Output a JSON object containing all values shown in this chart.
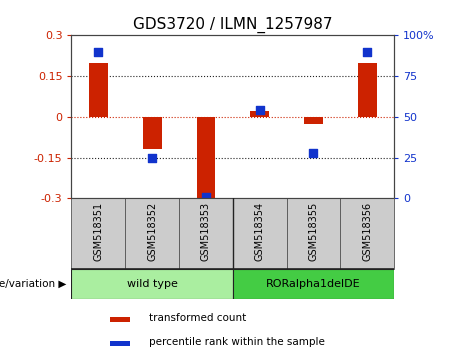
{
  "title": "GDS3720 / ILMN_1257987",
  "samples": [
    "GSM518351",
    "GSM518352",
    "GSM518353",
    "GSM518354",
    "GSM518355",
    "GSM518356"
  ],
  "transformed_counts": [
    0.2,
    -0.12,
    -0.3,
    0.02,
    -0.025,
    0.2
  ],
  "percentile_ranks": [
    90,
    25,
    1,
    54,
    28,
    90
  ],
  "bar_color": "#CC2200",
  "dot_color": "#1133CC",
  "ylim_left": [
    -0.3,
    0.3
  ],
  "ylim_right": [
    0,
    100
  ],
  "yticks_left": [
    -0.3,
    -0.15,
    0,
    0.15,
    0.3
  ],
  "yticks_right": [
    0,
    25,
    50,
    75,
    100
  ],
  "hlines": [
    0.15,
    -0.15
  ],
  "hline_zero_color": "#CC2200",
  "hline_dotted_color": "#222222",
  "groups": [
    {
      "label": "wild type",
      "indices": [
        0,
        1,
        2
      ],
      "color": "#AAEEA0"
    },
    {
      "label": "RORalpha1delDE",
      "indices": [
        3,
        4,
        5
      ],
      "color": "#44CC44"
    }
  ],
  "genotype_label": "genotype/variation",
  "legend_items": [
    {
      "label": "transformed count",
      "color": "#CC2200"
    },
    {
      "label": "percentile rank within the sample",
      "color": "#1133CC"
    }
  ],
  "background_color": "#FFFFFF",
  "plot_bg_color": "#FFFFFF",
  "tick_label_color_left": "#CC2200",
  "tick_label_color_right": "#1133CC",
  "bar_width": 0.35,
  "dot_size": 40,
  "sample_box_color": "#CCCCCC",
  "sample_box_edge": "#555555"
}
